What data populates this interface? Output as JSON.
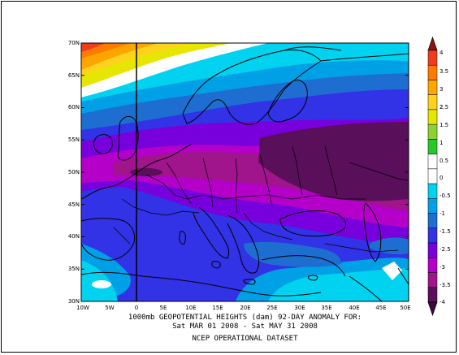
{
  "caption": {
    "line1": "1000mb GEOPOTENTIAL HEIGHTS (dam)  92-DAY ANOMALY FOR:",
    "line2": "Sat MAR 01 2008 - Sat MAY 31 2008",
    "line3": "NCEP OPERATIONAL DATASET"
  },
  "latitude_ticks": [
    "70N",
    "65N",
    "60N",
    "55N",
    "50N",
    "45N",
    "40N",
    "35N",
    "30N"
  ],
  "longitude_ticks": [
    "10W",
    "5W",
    "0",
    "5E",
    "10E",
    "15E",
    "20E",
    "25E",
    "30E",
    "35E",
    "40E",
    "45E",
    "50E"
  ],
  "colorbar": {
    "tick_labels": [
      "4",
      "3.5",
      "3",
      "2.5",
      "2",
      "1.5",
      "1",
      "0.5",
      "0",
      "-0.5",
      "-1",
      "-1.5",
      "-2.5",
      "-3",
      "-3.5",
      "-4"
    ],
    "colors": [
      "#f03c1e",
      "#ff7a00",
      "#ffa500",
      "#ffd21e",
      "#e6e600",
      "#8cd232",
      "#28c828",
      "#ffffff",
      "#ffffff",
      "#00d2f0",
      "#00a0e6",
      "#1e6ed2",
      "#3232e6",
      "#7800dc",
      "#b400c8",
      "#a0148c",
      "#5a0f5a"
    ]
  },
  "map": {
    "region": "Europe",
    "lat_range": [
      30,
      70
    ],
    "lon_range": [
      -10,
      50
    ],
    "grid_line": "0"
  }
}
